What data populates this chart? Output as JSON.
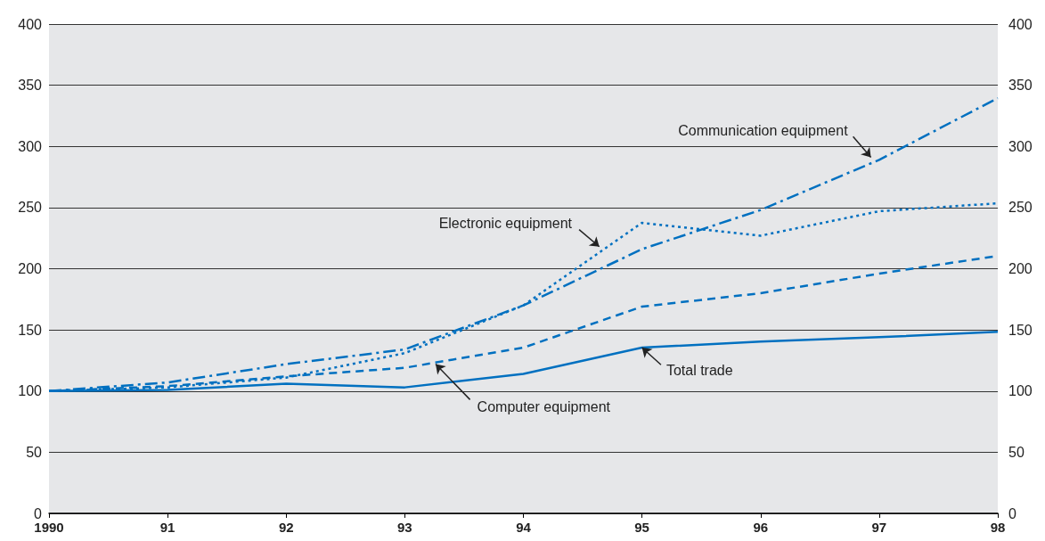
{
  "chart_data": {
    "type": "line",
    "x": [
      1990,
      1991,
      1992,
      1993,
      1994,
      1995,
      1996,
      1997,
      1998
    ],
    "series": [
      {
        "color": "#0070c0",
        "line_style": "solid",
        "values": [
          100,
          101,
          106,
          103,
          114,
          135.5,
          140.5,
          144,
          148.5
        ]
      },
      {
        "color": "#0070c0",
        "line_style": "dashed",
        "values": [
          100,
          104,
          112,
          119,
          135.5,
          169,
          180,
          196,
          210.5
        ]
      },
      {
        "color": "#0070c0",
        "line_style": "dotted",
        "values": [
          100,
          103,
          111,
          131,
          170,
          237.5,
          227,
          247,
          253.5
        ]
      },
      {
        "color": "#0070c0",
        "line_style": "dashdot",
        "values": [
          100,
          107,
          122,
          134,
          170,
          216,
          248,
          289,
          339.5
        ]
      }
    ],
    "xlim": [
      1990,
      1998
    ],
    "xticks": [
      1990,
      {
        "value": 1991,
        "label": "91"
      },
      {
        "value": 1992,
        "label": "92"
      },
      {
        "value": 1993,
        "label": "93"
      },
      {
        "value": 1994,
        "label": "94"
      },
      {
        "value": 1995,
        "label": "95"
      },
      {
        "value": 1996,
        "label": "96"
      },
      {
        "value": 1997,
        "label": "97"
      },
      {
        "value": 1998,
        "label": "98"
      }
    ],
    "ylim": [
      0,
      400
    ],
    "yticks": [
      0,
      50,
      100,
      150,
      200,
      250,
      300,
      350,
      400
    ],
    "y2lim": [
      0,
      400
    ],
    "y2ticks": [
      0,
      50,
      100,
      150,
      200,
      250,
      300,
      350,
      400
    ],
    "grid": "y",
    "marker": "none",
    "annotations": [
      {
        "text": "Total trade",
        "x": 1995,
        "y": 135.5
      },
      {
        "text": "Computer equipment",
        "x": 1993.26,
        "y": 122
      },
      {
        "text": "Electronic equipment",
        "x": 1994.64,
        "y": 218
      },
      {
        "text": "Communication equipment",
        "x": 1996.93,
        "y": 291
      }
    ]
  }
}
